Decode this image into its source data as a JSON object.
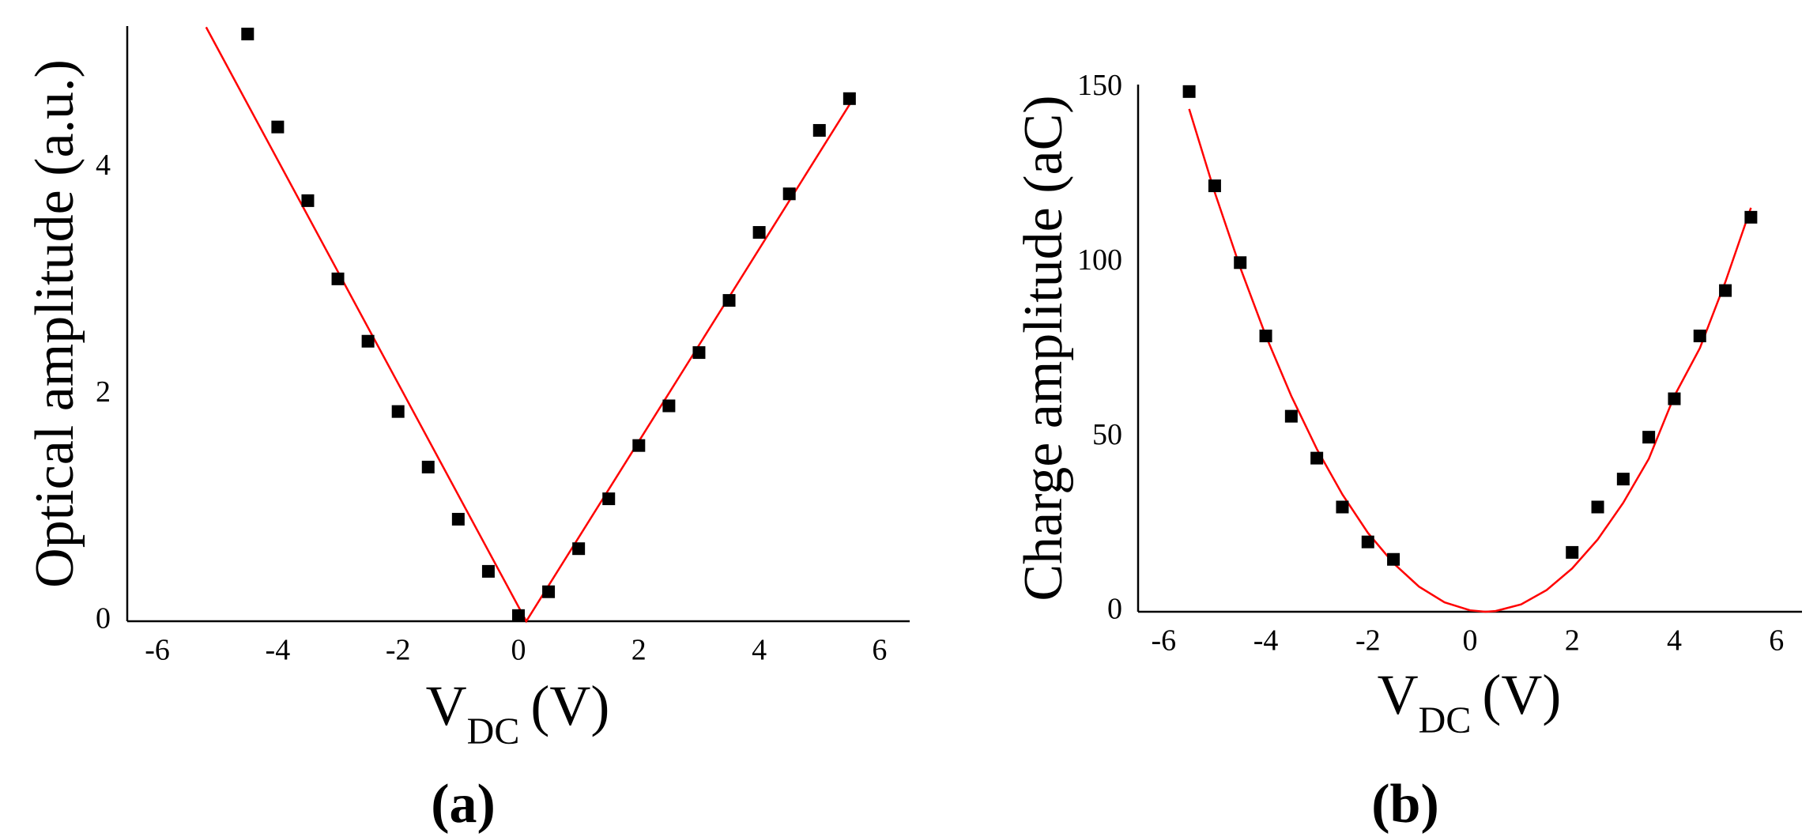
{
  "chart_data": [
    {
      "type": "scatter",
      "panel_label": "(a)",
      "y_label": "Optical amplitude (a.u.)",
      "x_label": {
        "main": "V",
        "sub": "DC",
        "unit": "(V)"
      },
      "xlim": [
        -6.5,
        6.5
      ],
      "ylim": [
        0,
        5.25
      ],
      "xticks": [
        -6,
        -4,
        -2,
        0,
        2,
        4,
        6
      ],
      "yticks": [
        0,
        2,
        4
      ],
      "points": {
        "color": "#000000",
        "x": [
          -4.5,
          -4,
          -3.5,
          -3,
          -2.5,
          -2,
          -1.5,
          -1,
          -0.5,
          0,
          0.5,
          1,
          1.5,
          2,
          2.5,
          3,
          3.5,
          4,
          4.5,
          5,
          5.5
        ],
        "y": [
          5.18,
          4.36,
          3.71,
          3.02,
          2.47,
          1.85,
          1.36,
          0.9,
          0.44,
          0.05,
          0.26,
          0.64,
          1.08,
          1.55,
          1.9,
          2.37,
          2.83,
          3.43,
          3.77,
          4.33,
          4.61
        ]
      },
      "fit": {
        "color": "#ff0000",
        "x": [
          -5.19,
          0.13,
          5.55
        ],
        "y": [
          5.24,
          0,
          4.6
        ]
      }
    },
    {
      "type": "scatter",
      "panel_label": "(b)",
      "y_label": "Charge amplitude (aC)",
      "x_label": {
        "main": "V",
        "sub": "DC",
        "unit": "(V)"
      },
      "xlim": [
        -6.5,
        6.5
      ],
      "ylim": [
        0,
        151
      ],
      "xticks": [
        -6,
        -4,
        -2,
        0,
        2,
        4,
        6
      ],
      "yticks": [
        0,
        50,
        100,
        150
      ],
      "points": {
        "color": "#000000",
        "x": [
          -5.5,
          -5,
          -4.5,
          -4,
          -3.5,
          -3,
          -2.5,
          -2,
          -1.5,
          2,
          2.5,
          3,
          3.5,
          4,
          4.5,
          5,
          5.5
        ],
        "y": [
          149,
          122,
          100,
          79,
          56,
          44,
          30,
          20,
          15,
          17,
          30,
          38,
          50,
          61,
          79,
          92,
          113
        ]
      },
      "fit": {
        "color": "#ff0000",
        "x": [
          -5.5,
          -5,
          -4.5,
          -4,
          -3.5,
          -3,
          -2.5,
          -2,
          -1.5,
          -1,
          -0.5,
          0,
          0.3,
          0.5,
          1,
          1.5,
          2,
          2.5,
          3,
          3.5,
          4,
          4.5,
          5,
          5.5
        ],
        "y": [
          144.0,
          120.2,
          98.6,
          79.1,
          61.8,
          46.6,
          33.6,
          22.6,
          13.9,
          7.2,
          2.7,
          0.4,
          0,
          0.2,
          2.1,
          6.2,
          12.4,
          20.7,
          31.2,
          43.8,
          61.8,
          75.5,
          94.5,
          115.7
        ]
      }
    }
  ]
}
